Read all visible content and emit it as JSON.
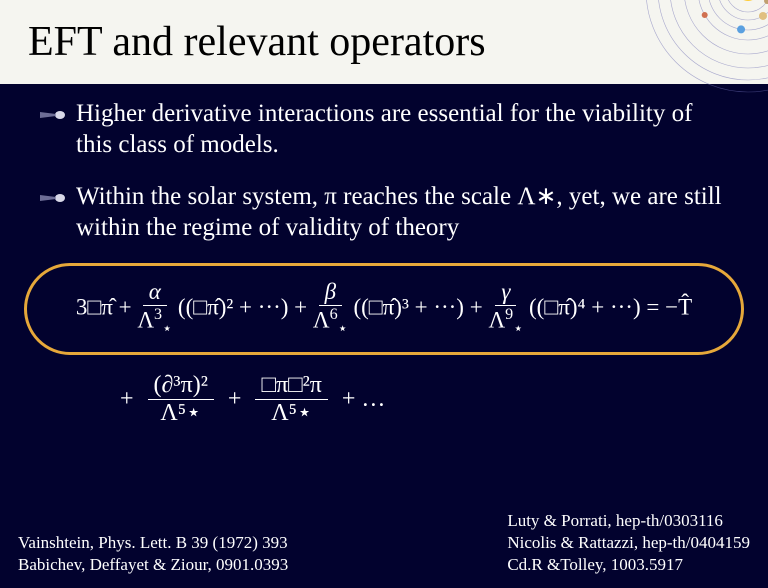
{
  "title": "EFT and relevant operators",
  "background_color": "#02022e",
  "title_bg": "#f5f5f0",
  "title_color": "#000000",
  "text_color": "#ffffff",
  "highlight_border_color": "#e6a83a",
  "bullets": [
    {
      "text": "Higher derivative interactions are essential for the viability of this class of models."
    },
    {
      "text": "Within the solar system, π reaches the scale Λ∗, yet, we are still within the regime of validity of theory"
    }
  ],
  "equations": {
    "main": {
      "term1": "3□π̂",
      "plus": "+",
      "frac_a_num": "α",
      "frac_a_den_base": "Λ",
      "frac_a_den_sub": "⋆",
      "frac_a_den_sup": "3",
      "group_a": "((□π̂)² + ···)",
      "frac_b_num": "β",
      "frac_b_den_sup": "6",
      "group_b": "((□π̂)³ + ···)",
      "frac_c_num": "γ",
      "frac_c_den_sup": "9",
      "group_c": "((□π̂)⁴ + ···)",
      "rhs": "= −T̂"
    },
    "secondary": {
      "plus": "+",
      "frac1_num": "(∂³π)²",
      "frac1_den": "Λ⁵⋆",
      "frac2_num": "□π□²π",
      "frac2_den": "Λ⁵⋆",
      "tail": "+ …"
    }
  },
  "refs_left": [
    "Vainshtein, Phys. Lett. B 39 (1972) 393",
    "Babichev, Deffayet & Ziour, 0901.0393"
  ],
  "refs_right": [
    "Luty & Porrati, hep-th/0303116",
    "Nicolis & Rattazzi, hep-th/0404159",
    "Cd.R &Tolley, 1003.5917"
  ],
  "solar_system": {
    "sun_color": "#ffcc33",
    "orbit_color": "#6a6ab0",
    "planets": [
      {
        "r": 22,
        "size": 3,
        "color": "#c0a070",
        "angle": 30
      },
      {
        "r": 30,
        "size": 4,
        "color": "#e0c080",
        "angle": 60
      },
      {
        "r": 40,
        "size": 4,
        "color": "#5aa0e0",
        "angle": 100
      },
      {
        "r": 50,
        "size": 3,
        "color": "#d07050",
        "angle": 150
      },
      {
        "r": 64,
        "size": 8,
        "color": "#d0a060",
        "angle": 200
      },
      {
        "r": 78,
        "size": 7,
        "color": "#e0d090",
        "angle": 250
      },
      {
        "r": 90,
        "size": 5,
        "color": "#80c0d0",
        "angle": 300
      },
      {
        "r": 102,
        "size": 5,
        "color": "#6090d0",
        "angle": 340
      }
    ]
  }
}
